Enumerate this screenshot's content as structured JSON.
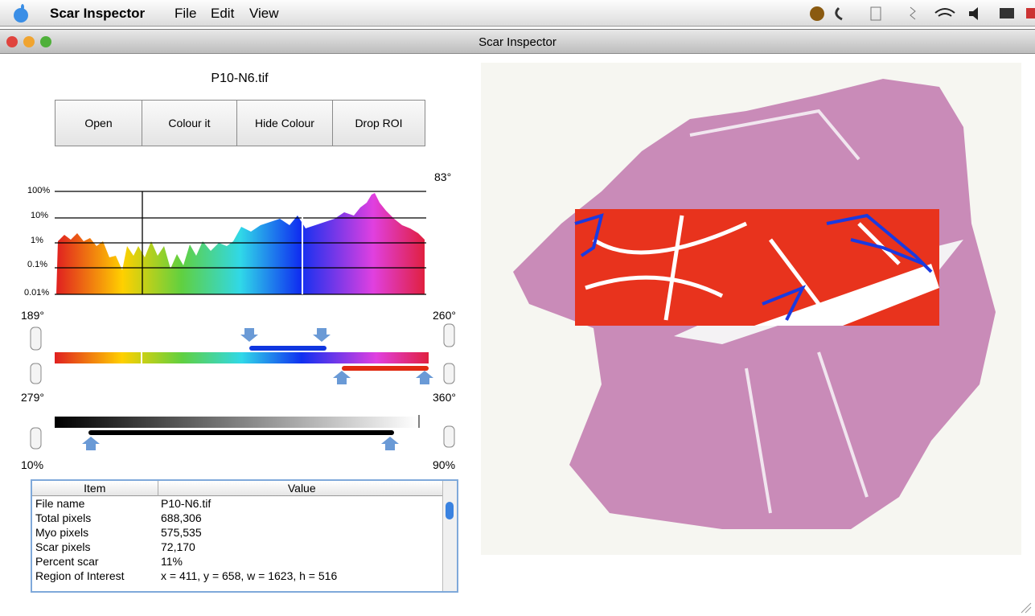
{
  "menu_bar": {
    "app_name": "Scar Inspector",
    "menus": [
      "File",
      "Edit",
      "View"
    ]
  },
  "window": {
    "title": "Scar Inspector"
  },
  "file_label": "P10-N6.tif",
  "buttons": [
    "Open",
    "Colour it",
    "Hide Colour",
    "Drop ROI"
  ],
  "histogram": {
    "angle_label": "83°",
    "scale_labels": [
      "100%",
      "10%",
      "1%",
      "0.1%",
      "0.01%"
    ]
  },
  "hue_range": {
    "left_label": "189°",
    "right_label": "260°"
  },
  "second_hue_range": {
    "left_label": "279°",
    "right_label": "360°"
  },
  "grey_range": {
    "left_label": "10%",
    "right_label": "90%"
  },
  "table": {
    "headers": [
      "Item",
      "Value"
    ],
    "rows": [
      [
        "File name",
        "P10-N6.tif"
      ],
      [
        "Total pixels",
        "688,306"
      ],
      [
        "Myo pixels",
        "575,535"
      ],
      [
        "Scar pixels",
        "72,170"
      ],
      [
        "Percent scar",
        "11%"
      ],
      [
        "Region of Interest",
        "x = 411, y = 658, w = 1623, h = 516"
      ]
    ]
  }
}
